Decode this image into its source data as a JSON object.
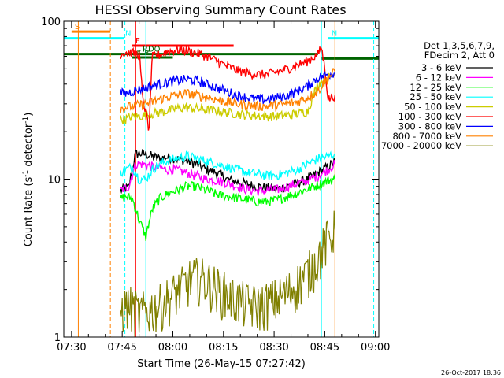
{
  "chart_data": {
    "type": "line",
    "title": "HESSI Observing Summary Count Rates",
    "xlabel": "Start Time (26-May-15 07:27:42)",
    "ylabel": "Count Rate (s",
    "ylabel_sup": "-1",
    "ylabel_tail": " detector",
    "ylabel_sup2": "-1",
    "ylabel_end": ")",
    "y_scale": "log",
    "ylim": [
      1,
      100
    ],
    "xlim_min": [
      27.7,
      121.0
    ],
    "grid": false,
    "x_ticks": [
      {
        "t": 30,
        "label": "07:30"
      },
      {
        "t": 45,
        "label": "07:45"
      },
      {
        "t": 60,
        "label": "08:00"
      },
      {
        "t": 75,
        "label": "08:15"
      },
      {
        "t": 90,
        "label": "08:30"
      },
      {
        "t": 105,
        "label": "08:45"
      },
      {
        "t": 120,
        "label": "09:00"
      }
    ],
    "y_ticks": [
      {
        "v": 1,
        "label": "1"
      },
      {
        "v": 10,
        "label": "10"
      },
      {
        "v": 100,
        "label": "100"
      }
    ],
    "legend": {
      "placement": "right",
      "header": [
        "Det 1,3,5,6,7,9,",
        "FDecim 2, Att 0"
      ],
      "entries": [
        {
          "label": "3 - 6 keV",
          "color": "#000000"
        },
        {
          "label": "6 - 12 keV",
          "color": "#ff00ff"
        },
        {
          "label": "12 - 25 keV",
          "color": "#00ff00"
        },
        {
          "label": "25 - 50 keV",
          "color": "#00ffff"
        },
        {
          "label": "50 - 100 keV",
          "color": "#cccc00"
        },
        {
          "label": "100 - 300 keV",
          "color": "#ff0000"
        },
        {
          "label": "300 - 800 keV",
          "color": "#0000ff"
        },
        {
          "label": "800 - 7000 keV",
          "color": "#ff8000"
        },
        {
          "label": "7000 - 20000 keV",
          "color": "#808000"
        }
      ]
    },
    "series": [
      {
        "name": "3 - 6 keV",
        "color": "#000000",
        "x": [
          44.5,
          47,
          49,
          51,
          54,
          56,
          58,
          61,
          64,
          67,
          70,
          73,
          76,
          79,
          82,
          85,
          88,
          91,
          94,
          97,
          100,
          103,
          106,
          108
        ],
        "y": [
          8.5,
          8.9,
          14.5,
          14.5,
          14,
          13.5,
          13.8,
          13.5,
          13,
          12.5,
          11.5,
          11,
          10,
          9.6,
          9.3,
          9,
          8.8,
          8.7,
          9,
          9.5,
          10,
          11,
          12,
          13
        ]
      },
      {
        "name": "6 - 12 keV",
        "color": "#ff00ff",
        "x": [
          44.5,
          47,
          49,
          51,
          54,
          56,
          58,
          61,
          64,
          67,
          70,
          73,
          76,
          79,
          82,
          85,
          88,
          91,
          94,
          97,
          100,
          103,
          106,
          108
        ],
        "y": [
          8.5,
          9,
          12.5,
          12.5,
          12,
          11.8,
          11.5,
          11.5,
          11,
          10.5,
          10,
          9.8,
          9.5,
          9,
          8.6,
          8.4,
          8.5,
          8.6,
          9,
          9.4,
          9.8,
          10.5,
          11.5,
          12.5
        ]
      },
      {
        "name": "12 - 25 keV",
        "color": "#00ff00",
        "x": [
          44.5,
          46,
          48,
          50,
          52,
          54,
          56,
          58,
          61,
          64,
          67,
          70,
          73,
          76,
          79,
          82,
          85,
          88,
          91,
          94,
          97,
          100,
          103,
          106,
          108
        ],
        "y": [
          7.5,
          7.8,
          7.5,
          5.5,
          4.3,
          6.5,
          7.5,
          8,
          8.5,
          9,
          9,
          8.5,
          8,
          7.8,
          7.6,
          7.4,
          7.2,
          7.2,
          7.4,
          7.8,
          8.2,
          8.7,
          9.2,
          9.8,
          10
        ]
      },
      {
        "name": "25 - 50 keV",
        "color": "#00ffff",
        "x": [
          44.5,
          46,
          48,
          50,
          52,
          54,
          56,
          58,
          61,
          64,
          67,
          70,
          73,
          76,
          79,
          82,
          85,
          88,
          91,
          94,
          97,
          100,
          103,
          106,
          108
        ],
        "y": [
          11,
          11.5,
          12,
          10,
          10,
          11.5,
          12.5,
          13,
          13.5,
          14,
          13.5,
          13,
          12.5,
          12,
          11.5,
          11,
          10.8,
          10.5,
          10.6,
          11,
          11.5,
          12.5,
          13.5,
          14,
          14.5
        ]
      },
      {
        "name": "50 - 100 keV",
        "color": "#cccc00",
        "x": [
          44.5,
          46,
          48,
          50,
          52,
          54,
          56,
          58,
          61,
          64,
          67,
          70,
          73,
          76,
          79,
          82,
          85,
          88,
          91,
          94,
          97,
          100,
          103,
          106,
          108
        ],
        "y": [
          24,
          24,
          25,
          25,
          25.5,
          26,
          26.5,
          27,
          28,
          28.5,
          28,
          27.5,
          27,
          26.5,
          26,
          25.5,
          25.2,
          25,
          25,
          25.5,
          26,
          27,
          40,
          44,
          46
        ]
      },
      {
        "name": "100 - 300 keV",
        "color": "#ff0000",
        "x": [
          44.5,
          46,
          48,
          50,
          51,
          53,
          54,
          56,
          58,
          61,
          64,
          67,
          70,
          73,
          76,
          79,
          82,
          85,
          88,
          91,
          94,
          97,
          100,
          103,
          104,
          106,
          108
        ],
        "y": [
          62,
          64,
          63,
          62,
          33,
          20,
          60,
          61,
          64,
          66,
          65,
          63,
          60,
          56,
          52,
          49,
          47,
          46,
          46,
          48,
          50,
          53,
          56,
          62,
          68,
          32,
          34
        ]
      },
      {
        "name": "300 - 800 keV",
        "color": "#0000ff",
        "x": [
          44.5,
          46,
          48,
          50,
          52,
          54,
          56,
          58,
          61,
          64,
          67,
          70,
          73,
          76,
          79,
          82,
          85,
          88,
          91,
          94,
          97,
          100,
          103,
          106,
          108
        ],
        "y": [
          35,
          35,
          36,
          37,
          38,
          39,
          40,
          41,
          42,
          43,
          42,
          40,
          38,
          36,
          34,
          33,
          32,
          32,
          33,
          34,
          36,
          39,
          44,
          46,
          47
        ]
      },
      {
        "name": "800 - 7000 keV",
        "color": "#ff8000",
        "x": [
          44.5,
          46,
          48,
          50,
          52,
          54,
          56,
          58,
          61,
          64,
          67,
          70,
          73,
          76,
          79,
          82,
          85,
          88,
          91,
          94,
          97,
          100,
          103,
          106,
          108
        ],
        "y": [
          28,
          28.5,
          29,
          29.5,
          30,
          31,
          32,
          33,
          34,
          35,
          34,
          33,
          32,
          31,
          30,
          29.5,
          29,
          29,
          29.5,
          30,
          31,
          33,
          36,
          44,
          48
        ]
      },
      {
        "name": "7000 - 20000 keV",
        "color": "#808000",
        "x": [
          44.5,
          47,
          50,
          53,
          56,
          59,
          62,
          65,
          68,
          71,
          74,
          77,
          80,
          83,
          86,
          89,
          92,
          95,
          98,
          101,
          104,
          106,
          108
        ],
        "y": [
          1.5,
          1.6,
          1.4,
          1.5,
          1.6,
          1.8,
          2,
          2.3,
          2.4,
          2.2,
          2,
          1.8,
          1.7,
          1.6,
          1.6,
          1.7,
          1.8,
          2,
          2.3,
          2.7,
          3.5,
          4.2,
          4.8
        ]
      }
    ],
    "flags": [
      {
        "label": "S",
        "color": "#ff8000",
        "x_start": 30,
        "x_end": 41.5,
        "y": 86
      },
      {
        "label": "N",
        "color": "#00ffff",
        "x_start": 27.7,
        "x_end": 45.5,
        "y": 78
      },
      {
        "label": "N",
        "color": "#00ffff",
        "x_start": 106,
        "x_end": 121,
        "y": 78
      },
      {
        "label": "F",
        "color": "#ff0000",
        "x_start": 48,
        "x_end": 78,
        "y": 70
      },
      {
        "label": "RDO",
        "color": "#006400",
        "x_start": 27.7,
        "x_end": 103,
        "y": 62
      },
      {
        "label": "",
        "color": "#006400",
        "x_start": 104,
        "x_end": 121,
        "y": 58
      },
      {
        "label": "PCP",
        "color": "#006400",
        "x_start": 48,
        "x_end": 60,
        "y": 59
      }
    ],
    "markers": [
      {
        "x": 32,
        "color": "#ff8000",
        "style": "solid"
      },
      {
        "x": 41.5,
        "color": "#ff8000",
        "style": "dashed"
      },
      {
        "x": 45.8,
        "color": "#00ffff",
        "style": "dashed"
      },
      {
        "x": 49,
        "color": "#ff0000",
        "style": "solid"
      },
      {
        "x": 52,
        "color": "#00ffff",
        "style": "solid"
      },
      {
        "x": 104,
        "color": "#00ffff",
        "style": "solid"
      },
      {
        "x": 108,
        "color": "#ff8000",
        "style": "solid"
      },
      {
        "x": 119.5,
        "color": "#00ffff",
        "style": "dashed"
      }
    ],
    "footer_timestamp": "26-Oct-2017 18:36"
  }
}
